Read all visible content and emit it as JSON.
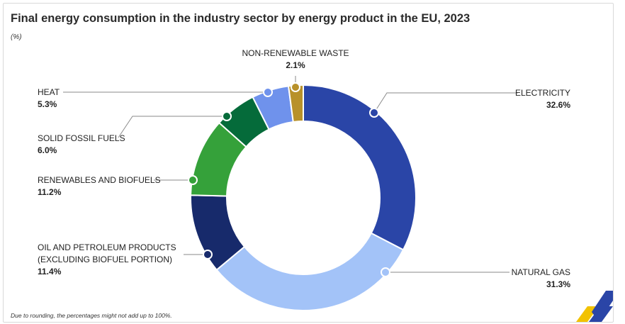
{
  "title": "Final energy consumption in the industry sector by energy product in the EU, 2023",
  "subtitle": "(%)",
  "footnote": "Due to rounding, the percentages might not add up to 100%.",
  "chart_data": {
    "type": "pie",
    "variant": "donut",
    "legend": "none",
    "slices": [
      {
        "label": "ELECTRICITY",
        "value": 32.6,
        "value_label": "32.6%",
        "color": "#2a45a7"
      },
      {
        "label": "NATURAL GAS",
        "value": 31.3,
        "value_label": "31.3%",
        "color": "#a3c3f8"
      },
      {
        "label": "OIL AND PETROLEUM PRODUCTS (EXCLUDING BIOFUEL PORTION)",
        "label_lines": [
          "OIL AND PETROLEUM PRODUCTS",
          "(EXCLUDING BIOFUEL PORTION)"
        ],
        "value": 11.4,
        "value_label": "11.4%",
        "color": "#172a6b"
      },
      {
        "label": "RENEWABLES AND BIOFUELS",
        "value": 11.2,
        "value_label": "11.2%",
        "color": "#35a13a"
      },
      {
        "label": "SOLID FOSSIL FUELS",
        "value": 6.0,
        "value_label": "6.0%",
        "color": "#056b3a"
      },
      {
        "label": "HEAT",
        "value": 5.3,
        "value_label": "5.3%",
        "color": "#6f92ec"
      },
      {
        "label": "NON-RENEWABLE WASTE",
        "value": 2.1,
        "value_label": "2.1%",
        "color": "#b8912a"
      }
    ]
  }
}
